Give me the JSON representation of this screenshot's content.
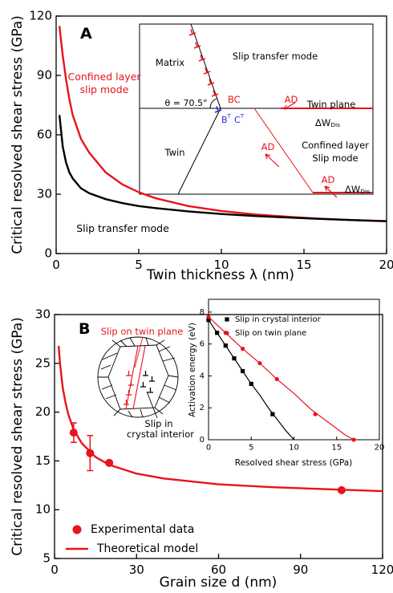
{
  "chart_data": [
    {
      "type": "line",
      "xlabel": "Twin thickness λ (nm)",
      "ylabel": "Critical resolved shear stress (GPa)",
      "xlim": [
        0,
        20
      ],
      "xticks": [
        0,
        5,
        10,
        15,
        20
      ],
      "ylim": [
        0,
        120
      ],
      "yticks": [
        0,
        30,
        60,
        90,
        120
      ],
      "series": [
        {
          "color": "#e8131b",
          "style": "line",
          "x": [
            0.2,
            0.4,
            0.6,
            0.8,
            1,
            1.5,
            2,
            3,
            4,
            5,
            6,
            8,
            10,
            12,
            14,
            16,
            18,
            20
          ],
          "values": [
            115,
            100,
            88,
            78,
            70,
            58,
            51,
            41,
            35,
            31,
            28,
            24,
            21.5,
            19.8,
            18.6,
            17.6,
            16.9,
            16.3
          ]
        },
        {
          "color": "#000000",
          "style": "line",
          "x": [
            0.2,
            0.4,
            0.6,
            0.8,
            1,
            1.5,
            2,
            3,
            4,
            5,
            6,
            8,
            10,
            12,
            14,
            16,
            18,
            20
          ],
          "values": [
            70,
            54,
            46,
            41,
            38,
            33,
            30.5,
            27.5,
            25.5,
            24,
            23,
            21.3,
            20,
            19,
            18.2,
            17.5,
            16.9,
            16.4
          ]
        }
      ],
      "annotations": [
        {
          "text": "A"
        },
        {
          "text": "Confined layer",
          "color": "#e8131b"
        },
        {
          "text": "slip mode",
          "color": "#e8131b"
        },
        {
          "text": "Slip transfer mode"
        },
        {
          "text": "Matrix"
        },
        {
          "text": "Slip transfer mode"
        },
        {
          "text": "θ = 70.5°"
        },
        {
          "text": "BC",
          "color": "#e8131b"
        },
        {
          "text": "B",
          "sup": "T",
          "color": "#1f2fd0"
        },
        {
          "text": "C",
          "sup": "T",
          "color": "#1f2fd0"
        },
        {
          "text": "AD",
          "color": "#e8131b"
        },
        {
          "text": "Twin plane"
        },
        {
          "text": "ΔW",
          "sub": "Dis"
        },
        {
          "text": "Twin"
        },
        {
          "text": "AD",
          "color": "#e8131b"
        },
        {
          "text": "Confined layer"
        },
        {
          "text": "Slip mode"
        },
        {
          "text": "AD",
          "color": "#e8131b"
        },
        {
          "text": "ΔW",
          "sub": "Dis"
        }
      ]
    },
    {
      "type": "line",
      "xlabel": "Grain size d (nm)",
      "ylabel": "Critical resolved shear stress (GPa)",
      "xlim": [
        0,
        120
      ],
      "xticks": [
        0,
        30,
        60,
        90,
        120
      ],
      "ylim": [
        5,
        30
      ],
      "yticks": [
        5,
        10,
        15,
        20,
        25,
        30
      ],
      "series": [
        {
          "name": "Experimental data",
          "color": "#e8131b",
          "style": "points",
          "marker": "circle",
          "x": [
            7,
            13,
            20,
            105
          ],
          "values": [
            17.9,
            15.8,
            14.8,
            12.0
          ],
          "errors": [
            1.0,
            1.8,
            null,
            null
          ]
        },
        {
          "name": "Theoretical model",
          "color": "#e8131b",
          "style": "line",
          "x": [
            1.5,
            2,
            3,
            4,
            5,
            7,
            10,
            15,
            20,
            30,
            40,
            60,
            80,
            100,
            120
          ],
          "values": [
            26.8,
            25,
            22.5,
            21,
            19.8,
            18.2,
            16.8,
            15.4,
            14.6,
            13.7,
            13.2,
            12.6,
            12.3,
            12.1,
            11.9
          ]
        }
      ],
      "annotations": [
        {
          "text": "B"
        },
        {
          "text": "Slip on twin plane",
          "color": "#e8131b"
        },
        {
          "text": "Slip in"
        },
        {
          "text": "crystal interior"
        }
      ]
    },
    {
      "type": "line",
      "xlabel": "Resolved shear stress (GPa)",
      "ylabel": "Activation energy (eV)",
      "xlim": [
        0,
        20
      ],
      "xticks": [
        0,
        5,
        10,
        15,
        20
      ],
      "ylim": [
        0,
        8.8
      ],
      "yticks": [
        0,
        2,
        4,
        6,
        8
      ],
      "series": [
        {
          "name": "Slip in crystal interior",
          "color": "#000000",
          "style": "points",
          "marker": "square",
          "x": [
            0,
            1,
            2,
            3,
            4,
            5,
            7.5
          ],
          "values": [
            7.5,
            6.7,
            5.9,
            5.1,
            4.3,
            3.5,
            1.6
          ]
        },
        {
          "name": "Slip on twin plane",
          "color": "#e8131b",
          "style": "points",
          "marker": "circle",
          "x": [
            0,
            2,
            4,
            6,
            8,
            12.5,
            17
          ],
          "values": [
            7.7,
            6.7,
            5.7,
            4.8,
            3.8,
            1.6,
            0
          ]
        },
        {
          "color": "#000000",
          "style": "line",
          "x": [
            0,
            1,
            2,
            3,
            4,
            5,
            6,
            7,
            8,
            9,
            10
          ],
          "values": [
            7.5,
            6.7,
            5.9,
            5.1,
            4.3,
            3.5,
            2.8,
            2.0,
            1.3,
            0.6,
            0
          ]
        },
        {
          "color": "#e8131b",
          "style": "line",
          "x": [
            0,
            2,
            4,
            6,
            8,
            10,
            12,
            14,
            16,
            17
          ],
          "values": [
            7.7,
            6.7,
            5.7,
            4.8,
            3.8,
            2.9,
            1.9,
            1.1,
            0.3,
            0
          ]
        }
      ]
    }
  ]
}
